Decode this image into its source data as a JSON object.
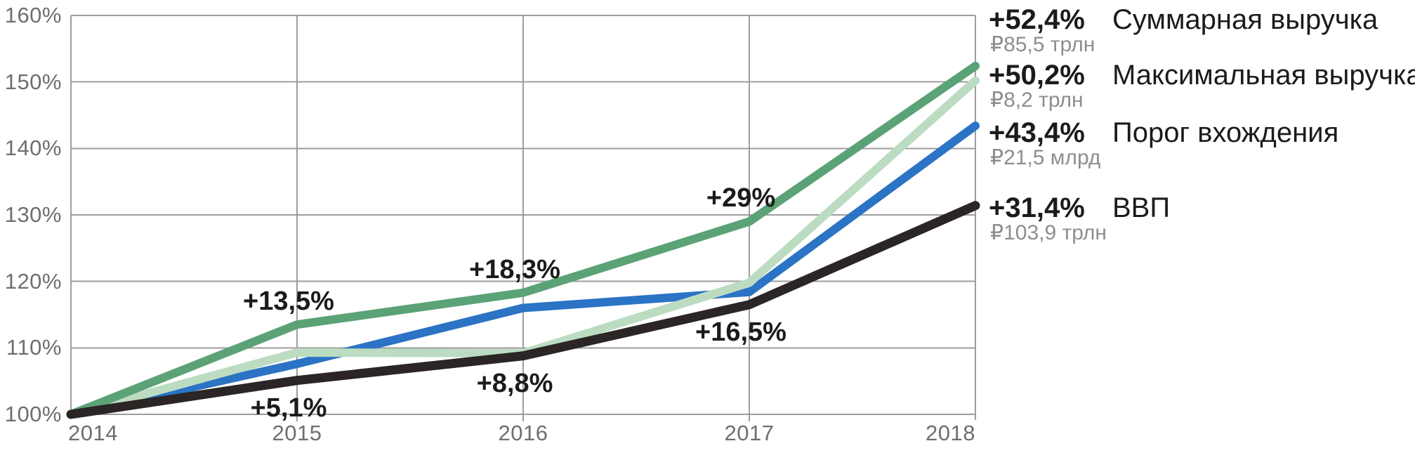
{
  "chart_data": {
    "type": "line",
    "title": "",
    "x": [
      2014,
      2015,
      2016,
      2017,
      2018
    ],
    "x_tick_labels": [
      "2014",
      "2015",
      "2016",
      "2017",
      "2018"
    ],
    "y_axis": {
      "min": 100,
      "max": 160,
      "step": 10,
      "unit": "%",
      "tick_labels": [
        "100%",
        "110%",
        "120%",
        "130%",
        "140%",
        "150%",
        "160%"
      ]
    },
    "grid": true,
    "legend_position": "right",
    "series": [
      {
        "id": "total-revenue",
        "name": "Суммарная выручка",
        "color": "#5ba276",
        "stroke_width": 12,
        "values": [
          100,
          113.5,
          118.3,
          129,
          152.4
        ],
        "change_label": "+52,4%",
        "value_label": "₽85,5 трлн"
      },
      {
        "id": "max-revenue",
        "name": "Максимальная выручка",
        "color": "#bcdcc2",
        "stroke_width": 12,
        "values": [
          100,
          109.3,
          109.2,
          119.8,
          150.2
        ],
        "change_label": "+50,2%",
        "value_label": "₽8,2 трлн"
      },
      {
        "id": "entry-threshold",
        "name": "Порог вхождения",
        "color": "#2b73c4",
        "stroke_width": 12,
        "values": [
          100,
          107.6,
          116,
          118.4,
          143.4
        ],
        "change_label": "+43,4%",
        "value_label": "₽21,5 млрд"
      },
      {
        "id": "gdp",
        "name": "ВВП",
        "color": "#2b2525",
        "stroke_width": 13,
        "values": [
          100,
          105.1,
          108.8,
          116.5,
          131.4
        ],
        "change_label": "+31,4%",
        "value_label": "₽103,9 трлн"
      }
    ],
    "annotations": [
      {
        "label": "+13,5%",
        "series": "total-revenue",
        "year": 2015,
        "value": 113.5,
        "placement": "above"
      },
      {
        "label": "+18,3%",
        "series": "total-revenue",
        "year": 2016,
        "value": 118.3,
        "placement": "above"
      },
      {
        "label": "+29%",
        "series": "total-revenue",
        "year": 2017,
        "value": 129,
        "placement": "above"
      },
      {
        "label": "+5,1%",
        "series": "gdp",
        "year": 2015,
        "value": 105.1,
        "placement": "below"
      },
      {
        "label": "+8,8%",
        "series": "gdp",
        "year": 2016,
        "value": 108.8,
        "placement": "below"
      },
      {
        "label": "+16,5%",
        "series": "gdp",
        "year": 2017,
        "value": 116.5,
        "placement": "below"
      }
    ]
  },
  "colors": {
    "background": "#ffffff",
    "grid": "#9d9d9d",
    "axis_text": "#6e6e6e",
    "annotation_text": "#1d1a1b",
    "legend_change_text": "#1d1a1b",
    "legend_name_text": "#1d1a1b",
    "legend_value_text": "#8e8e8e"
  }
}
